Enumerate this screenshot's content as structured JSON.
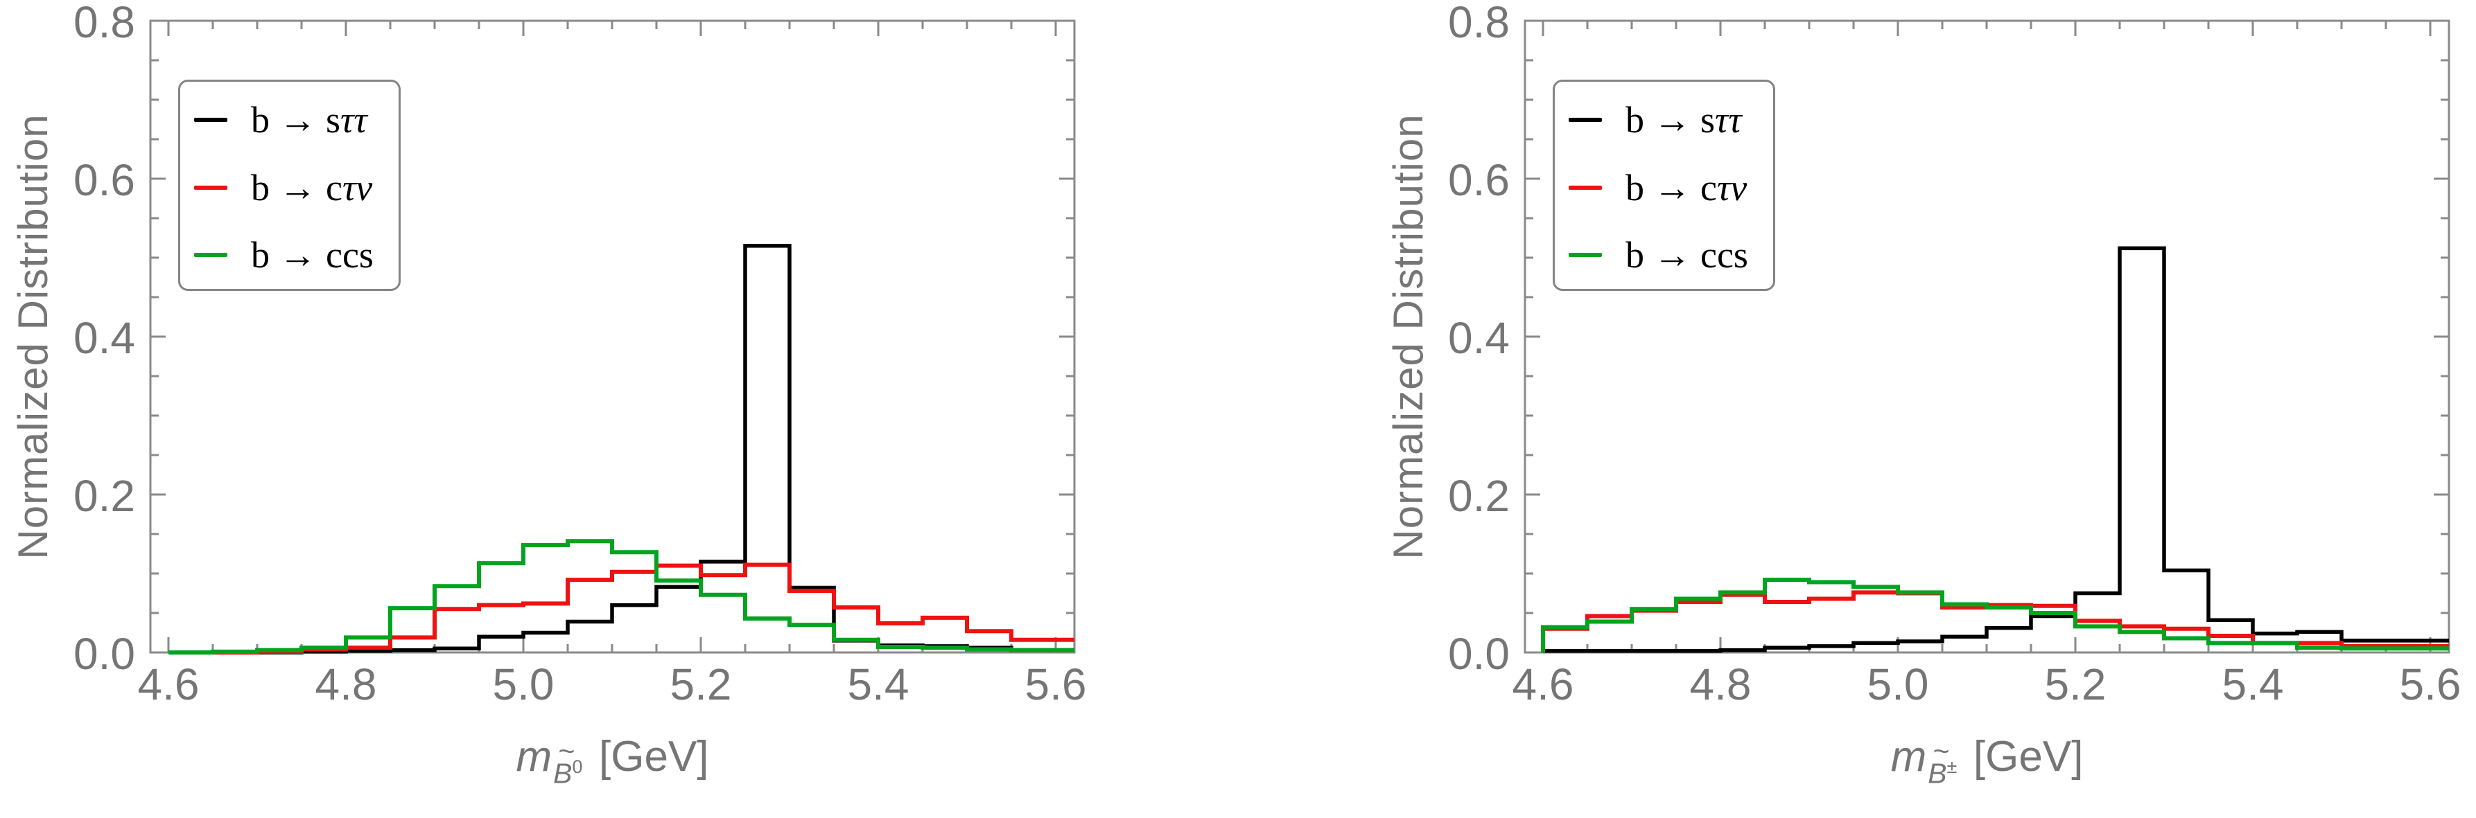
{
  "colors": {
    "black": "#000000",
    "red": "#ee1212",
    "green": "#00a41e",
    "axis_gray": "#8a8a8a",
    "label_gray": "#757575"
  },
  "legend": {
    "entries": [
      {
        "label": "b → sττ",
        "roman": "b → s",
        "italic": "ττ",
        "color_key": "black"
      },
      {
        "label": "b → cτν",
        "roman": "b → c",
        "italic": "τν",
        "color_key": "red"
      },
      {
        "label": "b → ccs",
        "roman": "b → ccs",
        "italic": "",
        "color_key": "green"
      }
    ]
  },
  "chart_data": [
    {
      "type": "bar",
      "subtype": "step-histogram",
      "panel": "left",
      "ylabel": "Normalized Distribution",
      "xlabel_parts": {
        "m": "m",
        "sub_base": "B",
        "sub_tilde": "~",
        "sub_sup": "0",
        "unit": "[GeV]"
      },
      "xlim": [
        4.58,
        5.622
      ],
      "ylim": [
        0,
        0.8
      ],
      "grid": false,
      "legend_position": "top-left",
      "x_major_ticks": [
        4.6,
        4.8,
        5.0,
        5.2,
        5.4,
        5.6
      ],
      "x_tick_labels": [
        "4.6",
        "4.8",
        "5.0",
        "5.2",
        "5.4",
        "5.6"
      ],
      "x_minor_step": 0.05,
      "y_major_ticks": [
        0.0,
        0.2,
        0.4,
        0.6,
        0.8
      ],
      "y_tick_labels": [
        "0.0",
        "0.2",
        "0.4",
        "0.6",
        "0.8"
      ],
      "y_minor_step": 0.05,
      "bin_start": 4.6,
      "bin_width": 0.05,
      "series": [
        {
          "name": "b → sττ",
          "color_key": "black",
          "values": [
            0,
            0,
            0,
            0.001,
            0.002,
            0.003,
            0.005,
            0.02,
            0.025,
            0.039,
            0.06,
            0.083,
            0.115,
            0.515,
            0.082,
            0.015,
            0.009,
            0.008,
            0.006,
            0.003
          ]
        },
        {
          "name": "b → cτν",
          "color_key": "red",
          "values": [
            0,
            0,
            0.001,
            0.004,
            0.006,
            0.019,
            0.055,
            0.06,
            0.062,
            0.092,
            0.102,
            0.11,
            0.098,
            0.111,
            0.078,
            0.057,
            0.037,
            0.044,
            0.027,
            0.016
          ]
        },
        {
          "name": "b → ccs",
          "color_key": "green",
          "values": [
            0,
            0.001,
            0.003,
            0.006,
            0.019,
            0.056,
            0.084,
            0.113,
            0.136,
            0.141,
            0.127,
            0.091,
            0.073,
            0.043,
            0.035,
            0.016,
            0.007,
            0.006,
            0.004,
            0.003
          ]
        }
      ]
    },
    {
      "type": "bar",
      "subtype": "step-histogram",
      "panel": "right",
      "ylabel": "Normalized Distribution",
      "xlabel_parts": {
        "m": "m",
        "sub_base": "B",
        "sub_tilde": "~",
        "sub_sup": "±",
        "unit": "[GeV]"
      },
      "xlim": [
        4.58,
        5.622
      ],
      "ylim": [
        0,
        0.8
      ],
      "grid": false,
      "legend_position": "top-left",
      "x_major_ticks": [
        4.6,
        4.8,
        5.0,
        5.2,
        5.4,
        5.6
      ],
      "x_tick_labels": [
        "4.6",
        "4.8",
        "5.0",
        "5.2",
        "5.4",
        "5.6"
      ],
      "x_minor_step": 0.05,
      "y_major_ticks": [
        0.0,
        0.2,
        0.4,
        0.6,
        0.8
      ],
      "y_tick_labels": [
        "0.0",
        "0.2",
        "0.4",
        "0.6",
        "0.8"
      ],
      "y_minor_step": 0.05,
      "bin_start": 4.6,
      "bin_width": 0.05,
      "series": [
        {
          "name": "b → sττ",
          "color_key": "black",
          "values": [
            0.002,
            0.002,
            0.002,
            0.002,
            0.003,
            0.006,
            0.008,
            0.012,
            0.014,
            0.02,
            0.031,
            0.046,
            0.075,
            0.512,
            0.104,
            0.041,
            0.024,
            0.026,
            0.015,
            0.015
          ]
        },
        {
          "name": "b → cτν",
          "color_key": "red",
          "values": [
            0.03,
            0.046,
            0.053,
            0.064,
            0.073,
            0.064,
            0.068,
            0.076,
            0.075,
            0.057,
            0.06,
            0.059,
            0.04,
            0.033,
            0.03,
            0.021,
            0.012,
            0.012,
            0.008,
            0.008
          ]
        },
        {
          "name": "b → ccs",
          "color_key": "green",
          "values": [
            0.032,
            0.039,
            0.055,
            0.068,
            0.076,
            0.092,
            0.089,
            0.083,
            0.076,
            0.061,
            0.057,
            0.05,
            0.033,
            0.026,
            0.018,
            0.012,
            0.012,
            0.006,
            0.005,
            0.005
          ]
        }
      ]
    }
  ]
}
